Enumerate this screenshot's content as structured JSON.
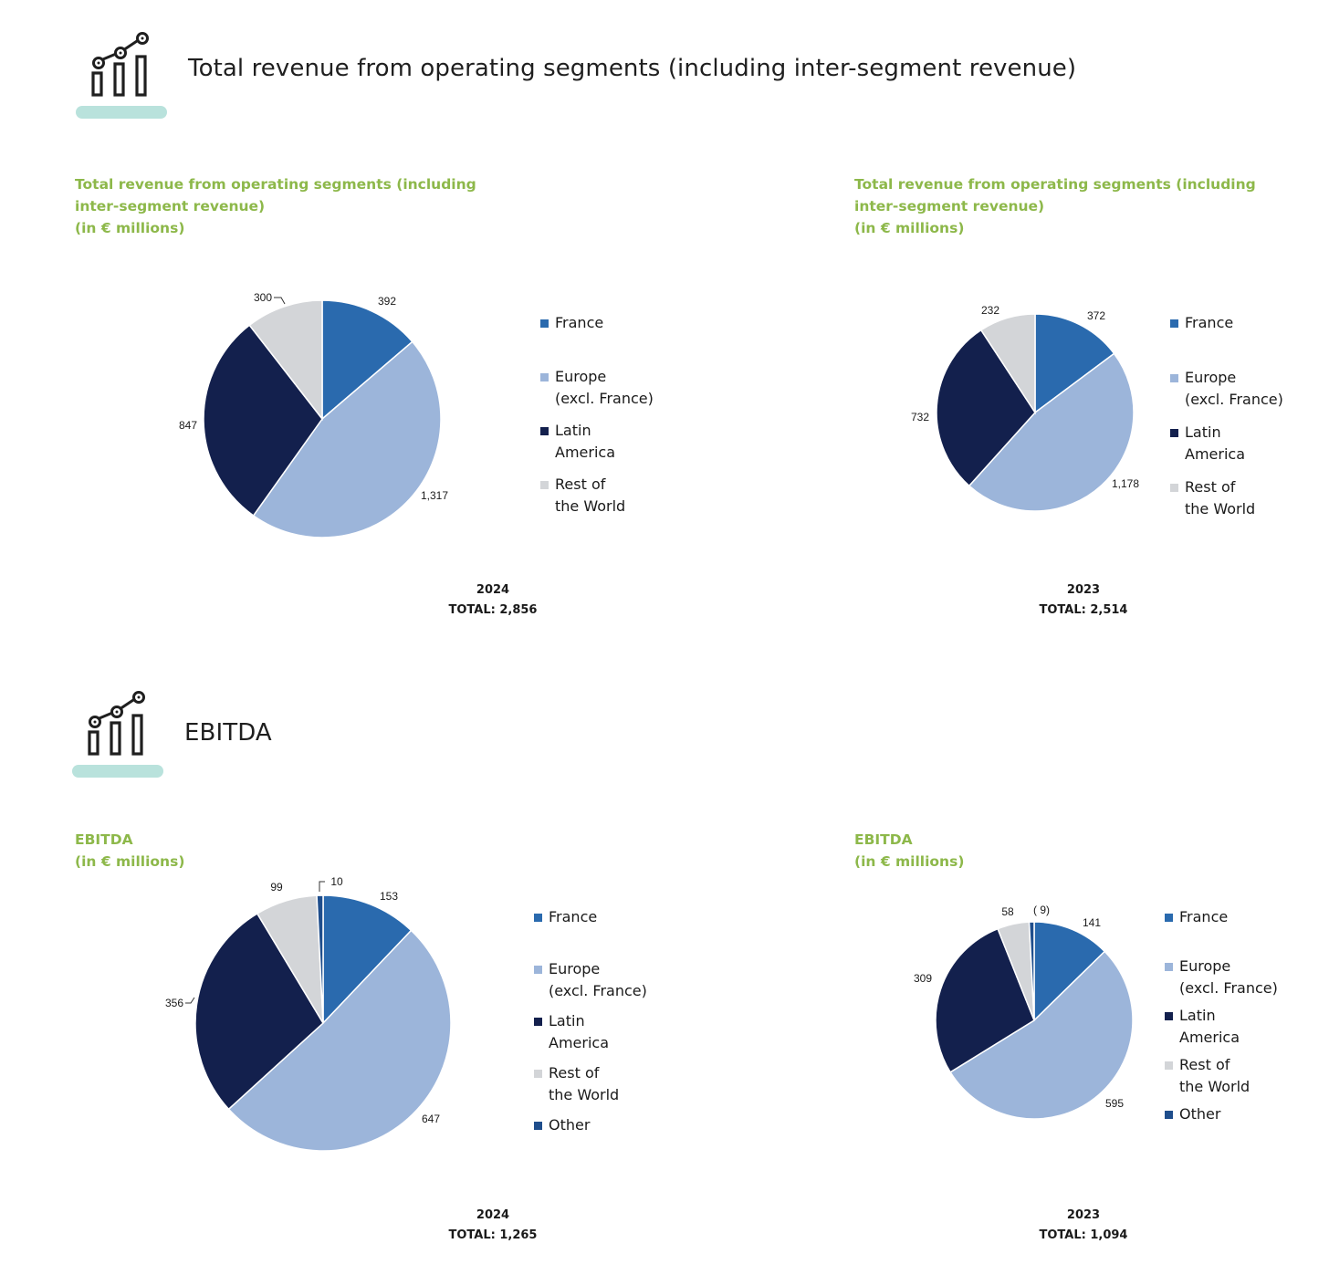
{
  "sections": {
    "revenue_heading": {
      "title": "Total revenue from operating segments (including inter-segment revenue)",
      "icon": "bar-chart-with-trend-line-icon"
    },
    "ebitda_heading": {
      "title": "EBITDA",
      "icon": "bar-chart-with-trend-line-icon"
    }
  },
  "colors": {
    "accent_green": "#8db84a",
    "heading_underline": "#b9e2dc",
    "France": "#2a6aae",
    "Europe": "#9cb5da",
    "LatinAmerica": "#13204d",
    "RestOfWorld": "#d3d5d8",
    "Other": "#1f4e8c"
  },
  "chart_data": [
    {
      "id": "rev2024",
      "type": "pie",
      "title_lines": [
        "Total revenue from operating segments (including",
        "inter-segment revenue)",
        "(in € millions)"
      ],
      "caption_lines": [
        "2024",
        "TOTAL: 2,856"
      ],
      "slices": [
        {
          "name": "France",
          "value": 392,
          "label": "392"
        },
        {
          "name": "Europe (excl. France)",
          "value": 1317,
          "label": "1,317"
        },
        {
          "name": "Latin America",
          "value": 847,
          "label": "847"
        },
        {
          "name": "Rest of the World",
          "value": 300,
          "label": "300"
        }
      ],
      "legend": [
        {
          "lines": [
            "France"
          ],
          "color_key": "France"
        },
        {
          "lines": [
            "Europe",
            "(excl. France)"
          ],
          "color_key": "Europe"
        },
        {
          "lines": [
            "Latin",
            "America"
          ],
          "color_key": "LatinAmerica"
        },
        {
          "lines": [
            "Rest of",
            "the World"
          ],
          "color_key": "RestOfWorld"
        }
      ]
    },
    {
      "id": "rev2023",
      "type": "pie",
      "title_lines": [
        "Total revenue from operating segments (including",
        "inter-segment revenue)",
        "(in € millions)"
      ],
      "caption_lines": [
        "2023",
        "TOTAL: 2,514"
      ],
      "slices": [
        {
          "name": "France",
          "value": 372,
          "label": "372"
        },
        {
          "name": "Europe (excl. France)",
          "value": 1178,
          "label": "1,178"
        },
        {
          "name": "Latin America",
          "value": 732,
          "label": "732"
        },
        {
          "name": "Rest of the World",
          "value": 232,
          "label": "232"
        }
      ],
      "legend": [
        {
          "lines": [
            "France"
          ],
          "color_key": "France"
        },
        {
          "lines": [
            "Europe",
            "(excl. France)"
          ],
          "color_key": "Europe"
        },
        {
          "lines": [
            "Latin",
            "America"
          ],
          "color_key": "LatinAmerica"
        },
        {
          "lines": [
            "Rest of",
            "the World"
          ],
          "color_key": "RestOfWorld"
        }
      ]
    },
    {
      "id": "ebitda2024",
      "type": "pie",
      "title_lines": [
        "EBITDA",
        "(in € millions)"
      ],
      "caption_lines": [
        "2024",
        "TOTAL: 1,265"
      ],
      "slices": [
        {
          "name": "France",
          "value": 153,
          "label": "153"
        },
        {
          "name": "Europe (excl. France)",
          "value": 647,
          "label": "647"
        },
        {
          "name": "Latin America",
          "value": 356,
          "label": "356"
        },
        {
          "name": "Rest of the World",
          "value": 99,
          "label": "99"
        },
        {
          "name": "Other",
          "value": 10,
          "label": "10"
        }
      ],
      "legend": [
        {
          "lines": [
            "France"
          ],
          "color_key": "France"
        },
        {
          "lines": [
            "Europe",
            "(excl. France)"
          ],
          "color_key": "Europe"
        },
        {
          "lines": [
            "Latin",
            "America"
          ],
          "color_key": "LatinAmerica"
        },
        {
          "lines": [
            "Rest of",
            "the World"
          ],
          "color_key": "RestOfWorld"
        },
        {
          "lines": [
            "Other"
          ],
          "color_key": "Other"
        }
      ]
    },
    {
      "id": "ebitda2023",
      "type": "pie",
      "title_lines": [
        "EBITDA",
        "(in € millions)"
      ],
      "caption_lines": [
        "2023",
        "TOTAL: 1,094"
      ],
      "slices": [
        {
          "name": "France",
          "value": 141,
          "label": "141"
        },
        {
          "name": "Europe (excl. France)",
          "value": 595,
          "label": "595"
        },
        {
          "name": "Latin America",
          "value": 309,
          "label": "309"
        },
        {
          "name": "Rest of the World",
          "value": 58,
          "label": "58"
        },
        {
          "name": "Other",
          "value": -9,
          "label": "( 9)"
        }
      ],
      "legend": [
        {
          "lines": [
            "France"
          ],
          "color_key": "France"
        },
        {
          "lines": [
            "Europe",
            "(excl. France)"
          ],
          "color_key": "Europe"
        },
        {
          "lines": [
            "Latin",
            "America"
          ],
          "color_key": "LatinAmerica"
        },
        {
          "lines": [
            "Rest of",
            "the World"
          ],
          "color_key": "RestOfWorld"
        },
        {
          "lines": [
            "Other"
          ],
          "color_key": "Other"
        }
      ]
    }
  ]
}
